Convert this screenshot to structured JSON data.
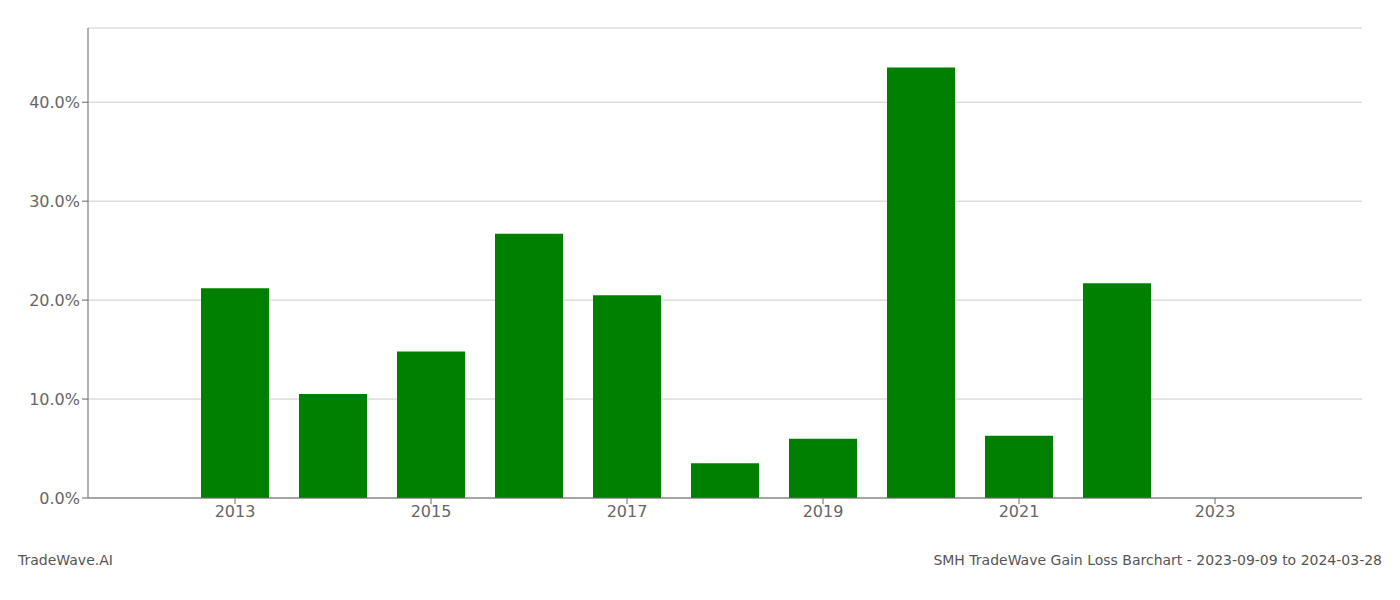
{
  "chart_data": {
    "type": "bar",
    "title": "SMH TradeWave Gain Loss Barchart - 2023-09-09 to 2024-03-28",
    "annotations": [
      "TradeWave.AI"
    ],
    "x": [
      2013,
      2014,
      2015,
      2016,
      2017,
      2018,
      2019,
      2020,
      2021,
      2022,
      2023
    ],
    "values": [
      0.212,
      0.105,
      0.148,
      0.267,
      0.205,
      0.035,
      0.06,
      0.435,
      0.063,
      0.217,
      0.0
    ],
    "color": "#008000",
    "xlim": [
      2011.5,
      2024.5
    ],
    "xticks": [
      2013,
      2015,
      2017,
      2019,
      2021,
      2023
    ],
    "ylim": [
      0,
      0.475
    ],
    "yticks": [
      {
        "value": 0.0,
        "label": "0.0%"
      },
      {
        "value": 0.1,
        "label": "10.0%"
      },
      {
        "value": 0.2,
        "label": "20.0%"
      },
      {
        "value": 0.3,
        "label": "30.0%"
      },
      {
        "value": 0.4,
        "label": "40.0%"
      }
    ],
    "grid": true
  }
}
